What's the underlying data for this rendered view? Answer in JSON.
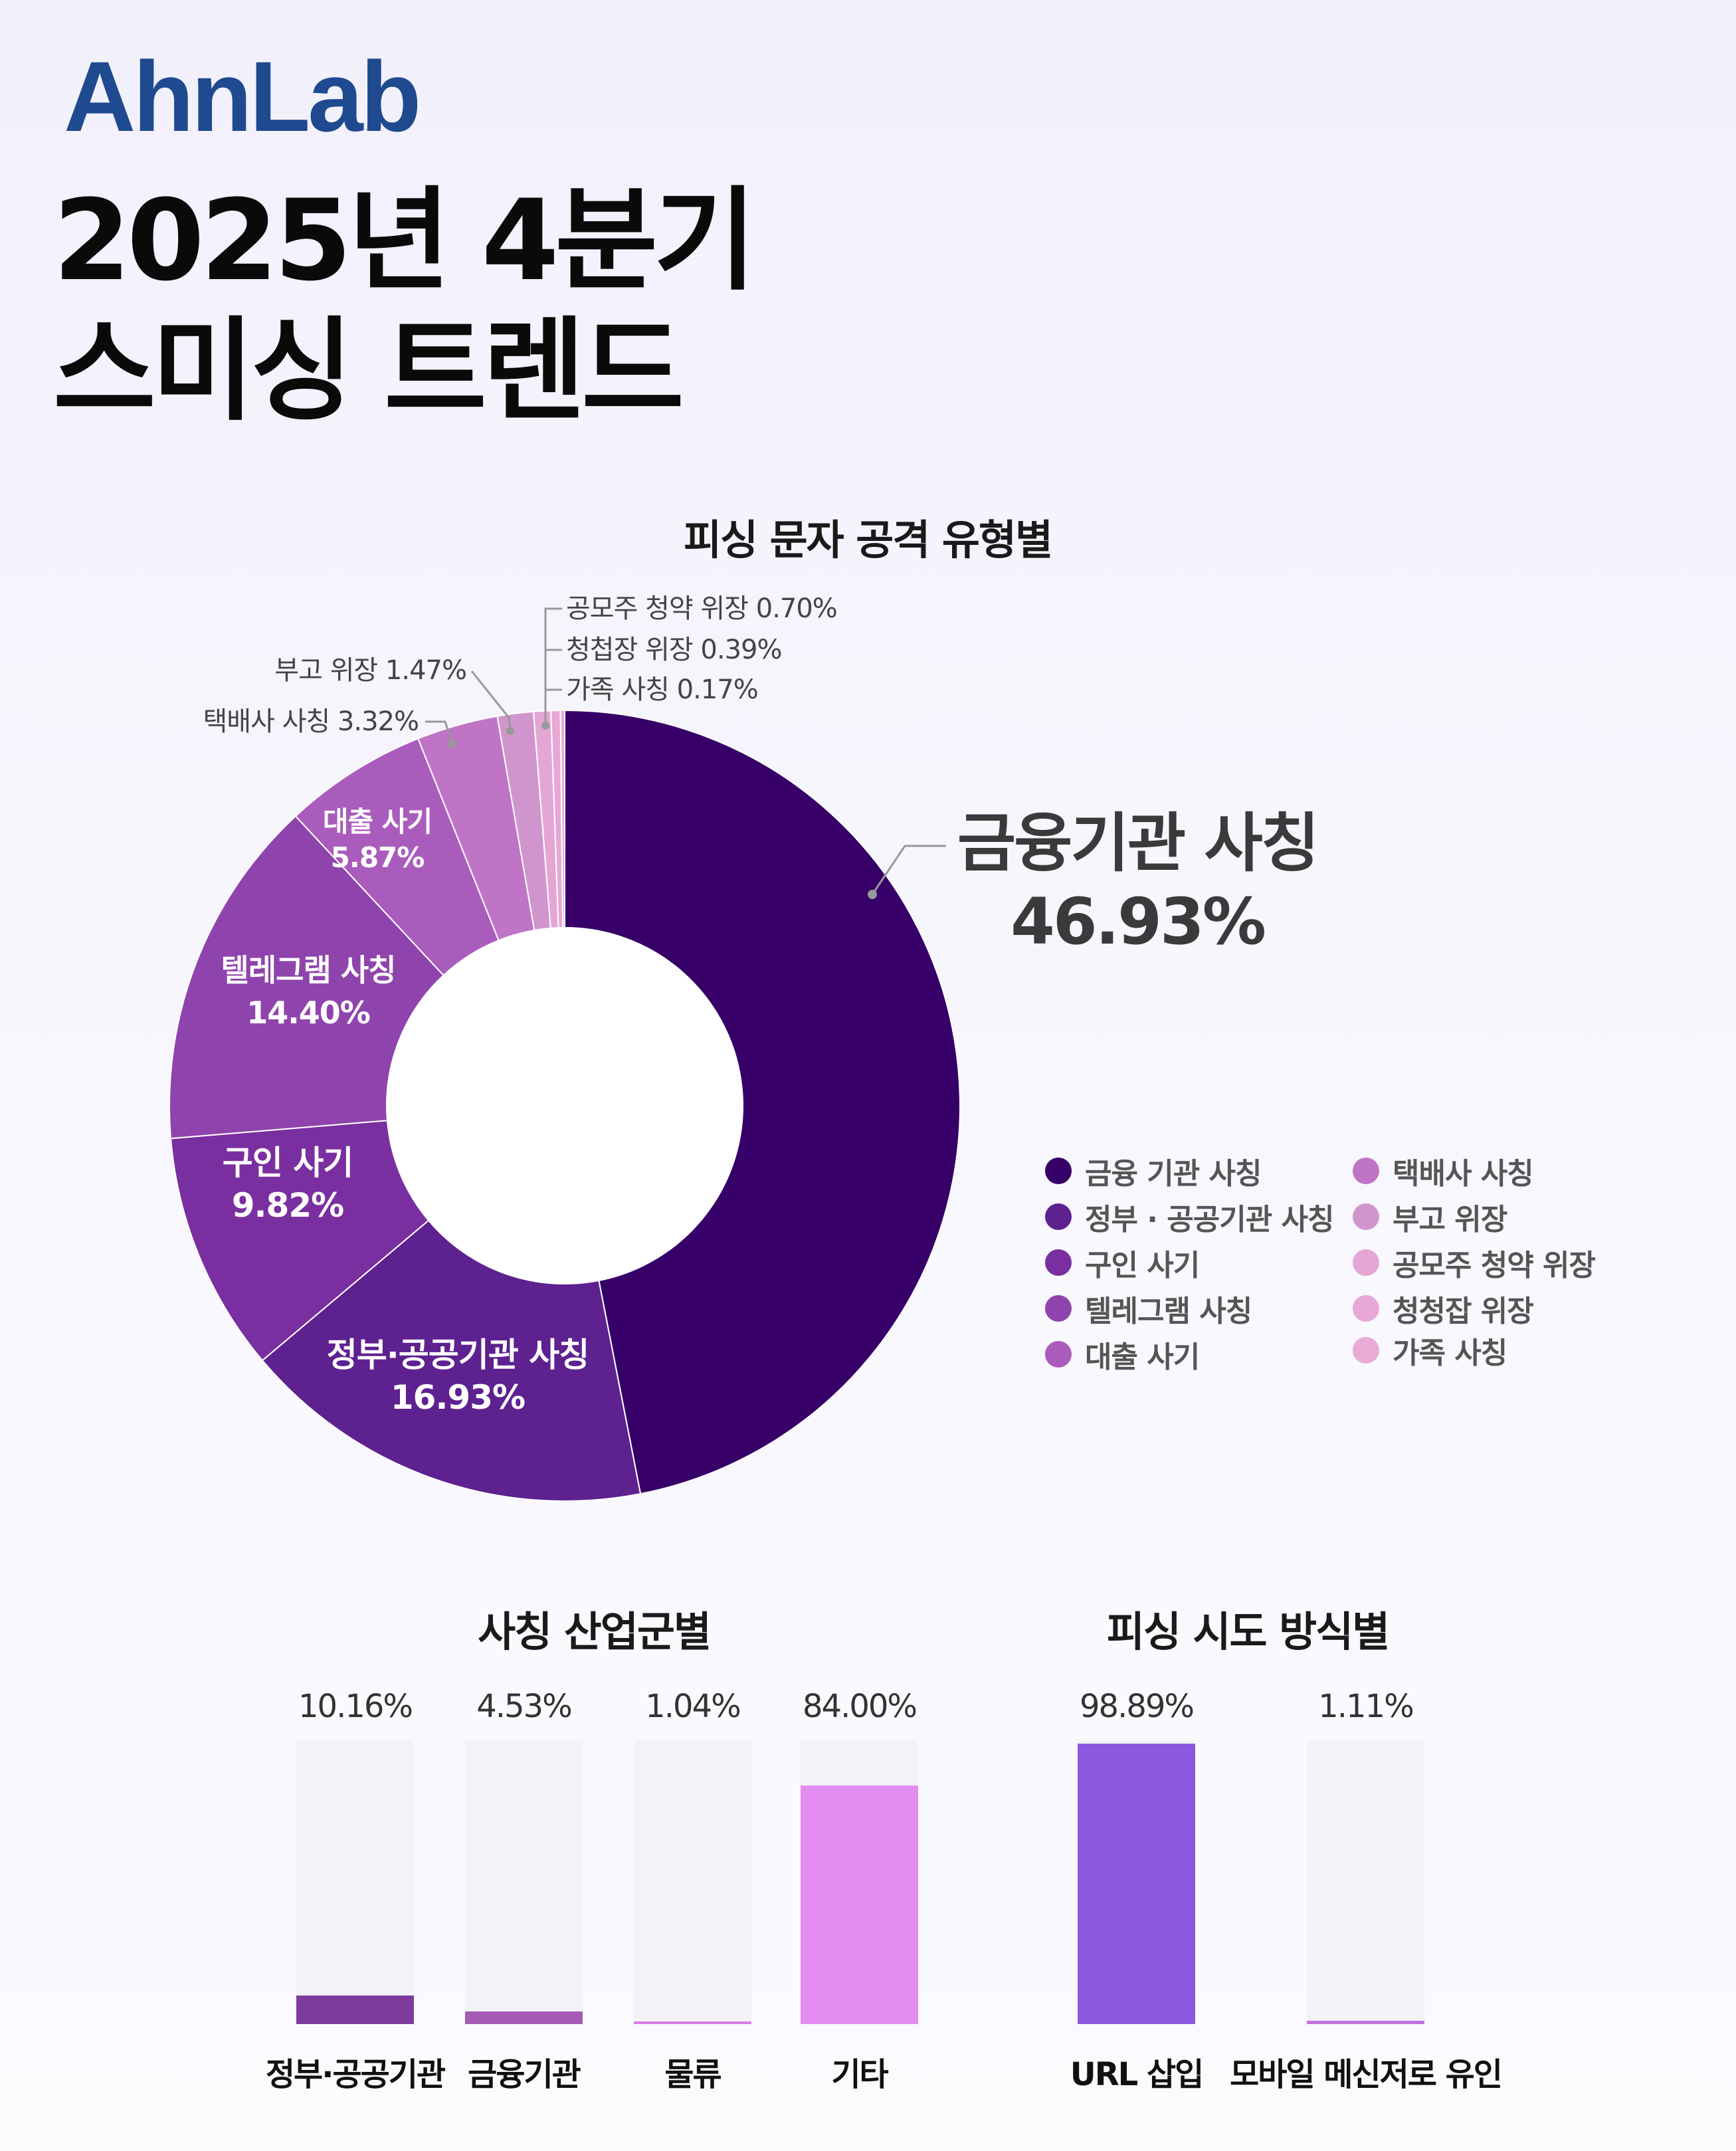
{
  "logo": "AhnLab",
  "title_line1": "2025년 4분기",
  "title_line2": "스미싱 트렌드",
  "chart_data": [
    {
      "type": "pie",
      "donut": true,
      "title": "피싱 문자 공격 유형별",
      "slices": [
        {
          "label": "금융기관 사칭",
          "value": 46.93,
          "value_label": "46.93%",
          "color": "#370068"
        },
        {
          "label": "정부·공공기관 사칭",
          "value": 16.93,
          "value_label": "16.93%",
          "color": "#5e2190"
        },
        {
          "label": "구인 사기",
          "value": 9.82,
          "value_label": "9.82%",
          "color": "#7a2fa0"
        },
        {
          "label": "텔레그램 사칭",
          "value": 14.4,
          "value_label": "14.40%",
          "color": "#8f44ad"
        },
        {
          "label": "대출 사기",
          "value": 5.87,
          "value_label": "5.87%",
          "color": "#aa5cbc"
        },
        {
          "label": "택배사 사칭",
          "value": 3.32,
          "value_label": "택배사 사칭 3.32%",
          "color": "#bf74c6"
        },
        {
          "label": "부고 위장",
          "value": 1.47,
          "value_label": "부고 위장 1.47%",
          "color": "#d195cd"
        },
        {
          "label": "공모주 청약 위장",
          "value": 0.7,
          "value_label": "공모주 청약 위장 0.70%",
          "color": "#e4a6d5"
        },
        {
          "label": "청첩장 위장",
          "value": 0.39,
          "value_label": "청첩장 위장 0.39%",
          "color": "#e7a8d5"
        },
        {
          "label": "가족 사칭",
          "value": 0.17,
          "value_label": "가족 사칭 0.17%",
          "color": "#e9aad6"
        }
      ],
      "legend": [
        "금융 기관 사칭",
        "정부 · 공공기관 사칭",
        "구인 사기",
        "텔레그램 사칭",
        "대출 사기",
        "택배사 사칭",
        "부고 위장",
        "공모주 청약 위장",
        "청청잡 위장",
        "가족 사칭"
      ],
      "legend_position": "right"
    },
    {
      "type": "bar",
      "title": "사칭 산업군별",
      "categories": [
        "정부·공공기관",
        "금융기관",
        "물류",
        "기타"
      ],
      "values": [
        10.16,
        4.53,
        1.04,
        84.0
      ],
      "value_labels": [
        "10.16%",
        "4.53%",
        "1.04%",
        "84.00%"
      ],
      "colors": [
        "#7d3b9d",
        "#a55ab6",
        "#d87de2",
        "#e38cf1"
      ],
      "ylim": [
        0,
        100
      ]
    },
    {
      "type": "bar",
      "title": "피싱 시도 방식별",
      "categories": [
        "URL 삽입",
        "모바일 메신저로 유인"
      ],
      "values": [
        98.89,
        1.11
      ],
      "value_labels": [
        "98.89%",
        "1.11%"
      ],
      "colors": [
        "#8b59de",
        "#c470e0"
      ],
      "ylim": [
        0,
        100
      ]
    }
  ],
  "track_color": "#f2f2f7"
}
